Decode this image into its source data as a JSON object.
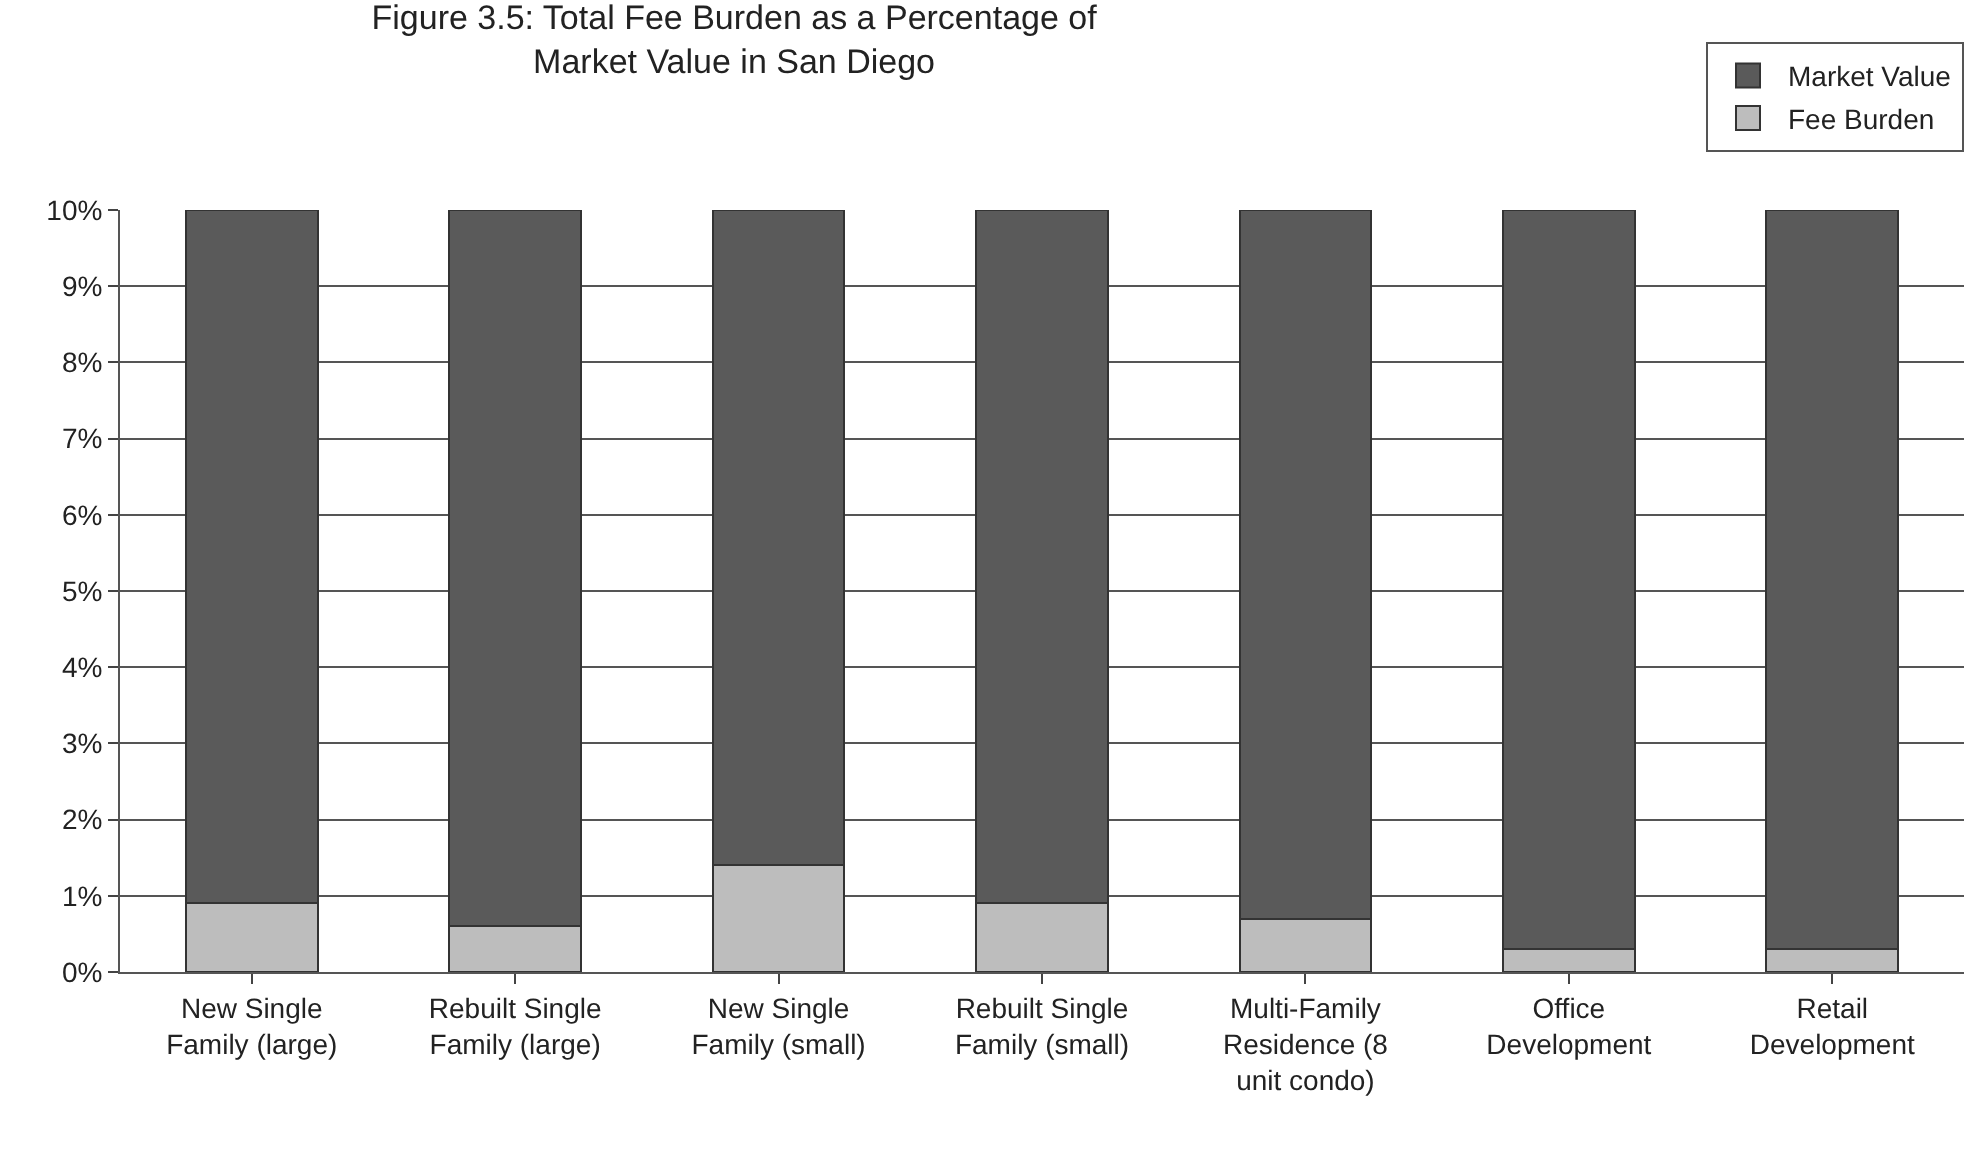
{
  "chart_data": {
    "type": "bar",
    "title": "Figure 3.5: Total Fee Burden as a Percentage of\nMarket Value in San Diego",
    "categories": [
      "New Single\nFamily (large)",
      "Rebuilt Single\nFamily (large)",
      "New Single\nFamily (small)",
      "Rebuilt Single\nFamily (small)",
      "Multi-Family\nResidence (8\nunit condo)",
      "Office\nDevelopment",
      "Retail\nDevelopment"
    ],
    "stacked": true,
    "series": [
      {
        "name": "Fee Burden",
        "color": "#bdbdbd",
        "values": [
          0.9,
          0.6,
          1.4,
          0.9,
          0.7,
          0.3,
          0.3
        ]
      },
      {
        "name": "Market Value",
        "color": "#5a5a5a",
        "values": [
          9.1,
          9.4,
          8.6,
          9.1,
          9.3,
          9.7,
          9.7
        ]
      }
    ],
    "ylim": [
      0,
      10
    ],
    "yticks": [
      {
        "value": 0,
        "label": "0%"
      },
      {
        "value": 1,
        "label": "1%"
      },
      {
        "value": 2,
        "label": "2%"
      },
      {
        "value": 3,
        "label": "3%"
      },
      {
        "value": 4,
        "label": "4%"
      },
      {
        "value": 5,
        "label": "5%"
      },
      {
        "value": 6,
        "label": "6%"
      },
      {
        "value": 7,
        "label": "7%"
      },
      {
        "value": 8,
        "label": "8%"
      },
      {
        "value": 9,
        "label": "9%"
      },
      {
        "value": 10,
        "label": "10%"
      }
    ],
    "grid": "y",
    "legend": "top right"
  }
}
